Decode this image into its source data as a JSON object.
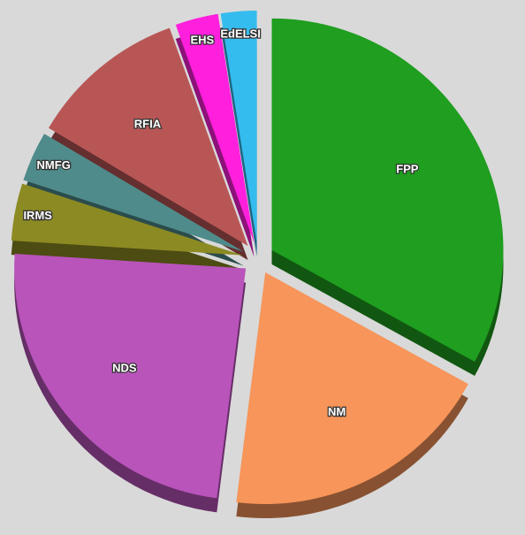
{
  "chart_data": {
    "type": "pie",
    "categories": [
      "FPP",
      "NM",
      "NDS",
      "IRMS",
      "NMFG",
      "RFIA",
      "EHS",
      "EdELSI"
    ],
    "values": [
      33,
      19,
      24,
      4,
      3.5,
      11,
      3,
      2.5
    ],
    "colors": [
      "#1f9e1f",
      "#f7955a",
      "#b954bb",
      "#8c8a22",
      "#4f8b8b",
      "#b85656",
      "#ff1fdc",
      "#35bcee"
    ]
  }
}
